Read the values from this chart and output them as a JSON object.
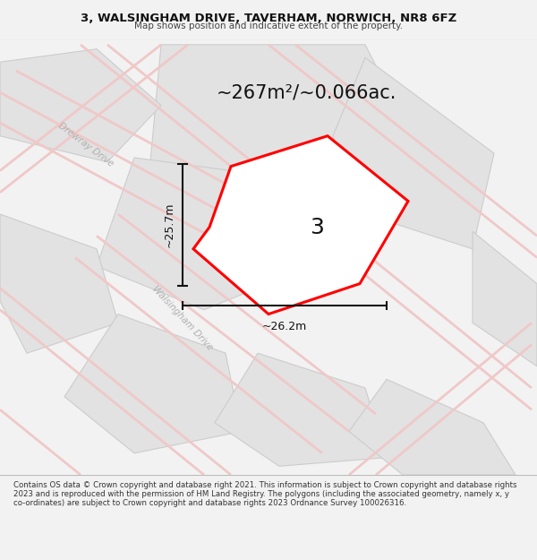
{
  "title_line1": "3, WALSINGHAM DRIVE, TAVERHAM, NORWICH, NR8 6FZ",
  "title_line2": "Map shows position and indicative extent of the property.",
  "area_text": "~267m²/~0.066ac.",
  "label_number": "3",
  "dim_vertical": "~25.7m",
  "dim_horizontal": "~26.2m",
  "footer_text": "Contains OS data © Crown copyright and database right 2021. This information is subject to Crown copyright and database rights 2023 and is reproduced with the permission of HM Land Registry. The polygons (including the associated geometry, namely x, y co-ordinates) are subject to Crown copyright and database rights 2023 Ordnance Survey 100026316.",
  "bg_color": "#f2f2f2",
  "map_bg": "#eeeeee",
  "plot_fill": "#ffffff",
  "plot_stroke": "#ff0000",
  "gray_block": "#e2e2e2",
  "gray_edge": "#cccccc",
  "road_color": "#f0c8c8",
  "street_label_color": "#b0b0b0",
  "title_bg": "#ffffff",
  "footer_bg": "#ffffff",
  "title_line1_size": 9.5,
  "title_line2_size": 7.5,
  "area_text_size": 15,
  "label_size": 18,
  "dim_size": 9,
  "street_size": 7.5,
  "footer_size": 6.2
}
